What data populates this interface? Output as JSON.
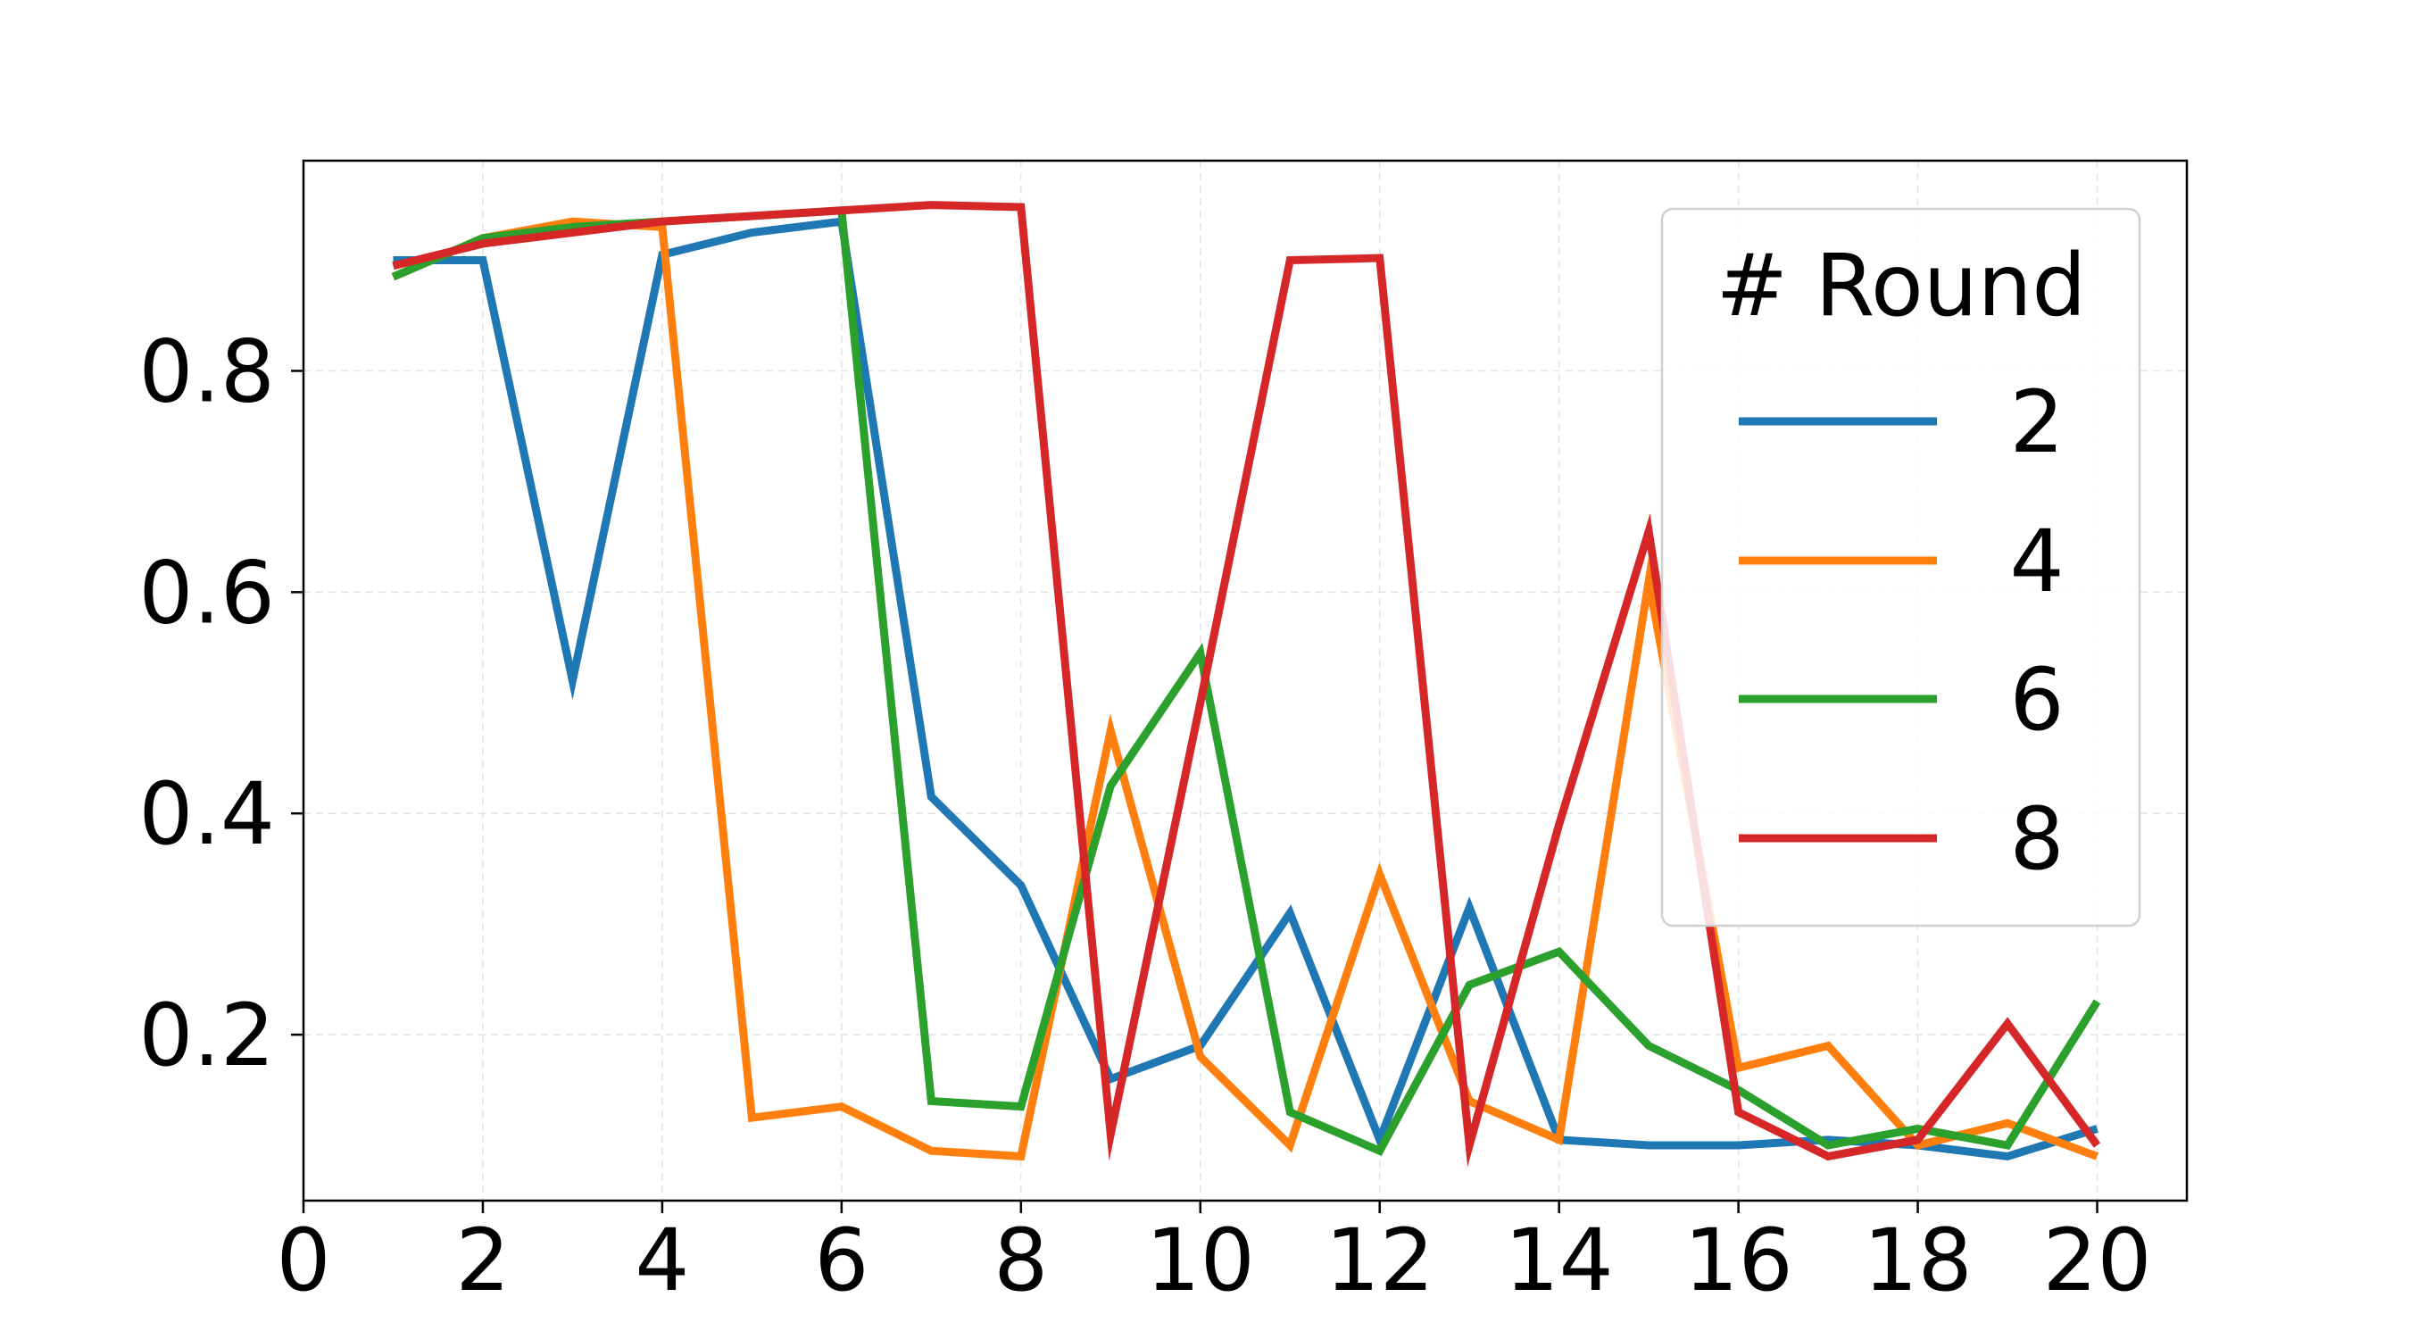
{
  "chart_data": {
    "type": "line",
    "title": "",
    "xlabel": "",
    "ylabel": "",
    "xlim": [
      0,
      21
    ],
    "ylim": [
      0.05,
      0.99
    ],
    "xticks": [
      0,
      2,
      4,
      6,
      8,
      10,
      12,
      14,
      16,
      18,
      20
    ],
    "yticks": [
      0.2,
      0.4,
      0.6,
      0.8
    ],
    "grid": true,
    "legend": {
      "title": "# Round",
      "position": "top-right"
    },
    "x": [
      1,
      2,
      3,
      4,
      5,
      6,
      7,
      8,
      9,
      10,
      11,
      12,
      13,
      14,
      15,
      16,
      17,
      18,
      19,
      20
    ],
    "series": [
      {
        "name": "2",
        "color": "#1f77b4",
        "values": [
          0.9,
          0.9,
          0.52,
          0.905,
          0.925,
          0.935,
          0.415,
          0.335,
          0.16,
          0.19,
          0.31,
          0.105,
          0.315,
          0.105,
          0.1,
          0.1,
          0.105,
          0.1,
          0.09,
          0.115
        ]
      },
      {
        "name": "4",
        "color": "#ff7f0e",
        "values": [
          0.885,
          0.92,
          0.935,
          0.93,
          0.125,
          0.135,
          0.095,
          0.09,
          0.475,
          0.18,
          0.1,
          0.345,
          0.14,
          0.105,
          0.61,
          0.17,
          0.19,
          0.1,
          0.12,
          0.09
        ]
      },
      {
        "name": "6",
        "color": "#2ca02c",
        "values": [
          0.885,
          0.92,
          0.93,
          0.935,
          0.94,
          0.945,
          0.14,
          0.135,
          0.425,
          0.545,
          0.13,
          0.095,
          0.245,
          0.275,
          0.19,
          0.15,
          0.1,
          0.115,
          0.1,
          0.23
        ]
      },
      {
        "name": "8",
        "color": "#d62728",
        "values": [
          0.895,
          0.915,
          0.925,
          0.935,
          0.94,
          0.945,
          0.95,
          0.948,
          0.11,
          0.5,
          0.9,
          0.902,
          0.1,
          0.39,
          0.655,
          0.13,
          0.09,
          0.105,
          0.21,
          0.1
        ]
      }
    ]
  }
}
